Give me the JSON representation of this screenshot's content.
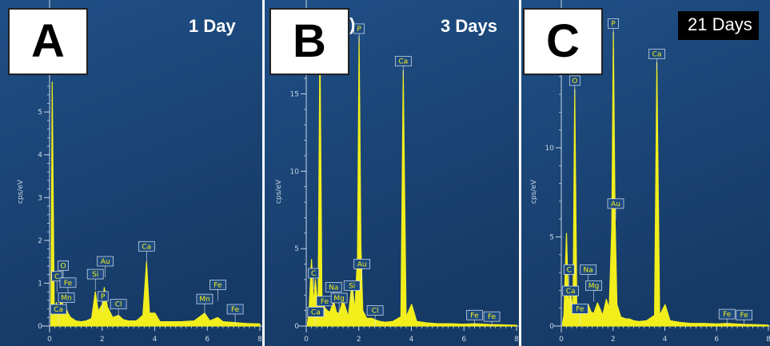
{
  "chart_data": [
    {
      "type": "line",
      "panel_letter": "A",
      "title": "1 Day",
      "ylabel": "cps/eV",
      "xlim": [
        0,
        8
      ],
      "ylim": [
        0,
        5.6
      ],
      "yticks": [
        0,
        1,
        2,
        3,
        4,
        5
      ],
      "xticks": [
        0,
        2,
        4,
        6,
        8
      ],
      "series": [
        {
          "x": [
            0.05,
            0.1,
            0.18,
            0.26,
            0.35,
            0.45,
            0.52,
            0.6,
            0.7,
            0.8,
            1.0,
            1.2,
            1.4,
            1.6,
            1.74,
            1.85,
            2.0,
            2.08,
            2.2,
            2.4,
            2.62,
            2.8,
            3.0,
            3.3,
            3.55,
            3.69,
            3.8,
            4.01,
            4.2,
            4.6,
            5.0,
            5.5,
            5.9,
            6.1,
            6.4,
            6.6,
            7.06,
            7.5,
            8.0
          ],
          "y": [
            0.1,
            5.7,
            0.2,
            0.55,
            0.3,
            0.7,
            0.4,
            0.45,
            0.3,
            0.2,
            0.12,
            0.1,
            0.12,
            0.18,
            0.8,
            0.35,
            0.5,
            0.9,
            0.45,
            0.2,
            0.25,
            0.15,
            0.12,
            0.12,
            0.25,
            1.5,
            0.3,
            0.3,
            0.1,
            0.1,
            0.1,
            0.12,
            0.3,
            0.12,
            0.2,
            0.1,
            0.08,
            0.06,
            0.05
          ]
        }
      ],
      "annotations": [
        {
          "label": "O",
          "x": 0.52,
          "y": 1.3
        },
        {
          "label": "C",
          "x": 0.28,
          "y": 1.05
        },
        {
          "label": "Fe",
          "x": 0.7,
          "y": 0.9
        },
        {
          "label": "Mn",
          "x": 0.64,
          "y": 0.55
        },
        {
          "label": "Ca",
          "x": 0.34,
          "y": 0.28
        },
        {
          "label": "Si",
          "x": 1.74,
          "y": 1.1
        },
        {
          "label": "Au",
          "x": 2.12,
          "y": 1.4
        },
        {
          "label": "P",
          "x": 2.03,
          "y": 0.58
        },
        {
          "label": "Cl",
          "x": 2.62,
          "y": 0.4
        },
        {
          "label": "Ca",
          "x": 3.69,
          "y": 1.75
        },
        {
          "label": "Mn",
          "x": 5.9,
          "y": 0.52
        },
        {
          "label": "Fe",
          "x": 6.4,
          "y": 0.85
        },
        {
          "label": "Fe",
          "x": 7.06,
          "y": 0.28
        }
      ]
    },
    {
      "type": "line",
      "panel_letter": "B",
      "title": "3 Days",
      "title_fragment": ")",
      "ylabel": "cps/eV",
      "xlim": [
        0,
        8
      ],
      "ylim": [
        0,
        19
      ],
      "yticks": [
        0,
        5,
        10,
        15
      ],
      "xticks": [
        0,
        2,
        4,
        6,
        8
      ],
      "series": [
        {
          "x": [
            0.05,
            0.1,
            0.2,
            0.28,
            0.35,
            0.45,
            0.52,
            0.6,
            0.7,
            0.8,
            0.9,
            1.04,
            1.15,
            1.25,
            1.4,
            1.6,
            1.74,
            1.85,
            1.95,
            2.01,
            2.08,
            2.15,
            2.3,
            2.5,
            2.62,
            2.8,
            3.0,
            3.3,
            3.6,
            3.69,
            3.8,
            4.01,
            4.2,
            4.6,
            5.0,
            5.5,
            6.0,
            6.4,
            7.0,
            7.5,
            8.0
          ],
          "y": [
            0.2,
            0.8,
            4.3,
            1.4,
            3.0,
            1.0,
            18.7,
            1.5,
            1.2,
            1.0,
            0.9,
            1.6,
            0.9,
            0.8,
            1.7,
            0.6,
            2.8,
            1.0,
            4.5,
            18.7,
            5.2,
            1.0,
            0.5,
            0.5,
            0.4,
            0.3,
            0.25,
            0.3,
            0.6,
            16.5,
            0.6,
            1.4,
            0.3,
            0.2,
            0.15,
            0.15,
            0.12,
            0.15,
            0.1,
            0.08,
            0.05
          ]
        }
      ],
      "annotations": [
        {
          "label": "C",
          "x": 0.28,
          "y": 3.1
        },
        {
          "label": "Ca",
          "x": 0.36,
          "y": 0.6
        },
        {
          "label": "Fe",
          "x": 0.7,
          "y": 1.3
        },
        {
          "label": "Na",
          "x": 1.04,
          "y": 2.2
        },
        {
          "label": "Mg",
          "x": 1.25,
          "y": 1.5
        },
        {
          "label": "Si",
          "x": 1.74,
          "y": 2.3
        },
        {
          "label": "P",
          "x": 2.01,
          "y": 18.9
        },
        {
          "label": "Au",
          "x": 2.12,
          "y": 3.7
        },
        {
          "label": "Cl",
          "x": 2.62,
          "y": 0.7
        },
        {
          "label": "Ca",
          "x": 3.69,
          "y": 16.8
        },
        {
          "label": "Fe",
          "x": 6.4,
          "y": 0.4
        },
        {
          "label": "Fe",
          "x": 7.06,
          "y": 0.3
        }
      ]
    },
    {
      "type": "line",
      "panel_letter": "C",
      "title": "21 Days",
      "ylabel": "cps/eV",
      "xlim": [
        0,
        8
      ],
      "ylim": [
        0,
        16.5
      ],
      "yticks": [
        0,
        5,
        10,
        15
      ],
      "xticks": [
        0,
        2,
        4,
        6,
        8
      ],
      "series": [
        {
          "x": [
            0.05,
            0.1,
            0.2,
            0.28,
            0.35,
            0.45,
            0.52,
            0.6,
            0.7,
            0.8,
            0.9,
            1.04,
            1.15,
            1.25,
            1.4,
            1.6,
            1.74,
            1.85,
            1.95,
            2.01,
            2.08,
            2.15,
            2.3,
            2.5,
            2.62,
            2.8,
            3.0,
            3.3,
            3.6,
            3.69,
            3.8,
            4.01,
            4.2,
            4.6,
            5.0,
            5.5,
            6.0,
            6.4,
            7.0,
            7.5,
            8.0
          ],
          "y": [
            0.2,
            0.6,
            5.2,
            1.0,
            2.2,
            0.8,
            13.3,
            1.0,
            0.8,
            0.7,
            0.7,
            1.2,
            0.8,
            0.7,
            1.3,
            0.6,
            1.5,
            1.0,
            5.5,
            16.5,
            6.0,
            1.2,
            0.5,
            0.4,
            0.4,
            0.3,
            0.25,
            0.3,
            0.6,
            14.8,
            0.6,
            1.2,
            0.3,
            0.2,
            0.15,
            0.15,
            0.12,
            0.15,
            0.1,
            0.08,
            0.05
          ]
        }
      ],
      "annotations": [
        {
          "label": "O",
          "x": 0.52,
          "y": 13.5
        },
        {
          "label": "C",
          "x": 0.3,
          "y": 2.9
        },
        {
          "label": "Ca",
          "x": 0.36,
          "y": 1.7
        },
        {
          "label": "Fe",
          "x": 0.72,
          "y": 0.7
        },
        {
          "label": "Na",
          "x": 1.04,
          "y": 2.9
        },
        {
          "label": "Mg",
          "x": 1.25,
          "y": 2.0
        },
        {
          "label": "P",
          "x": 2.01,
          "y": 16.7
        },
        {
          "label": "Au",
          "x": 2.1,
          "y": 6.6
        },
        {
          "label": "Ca",
          "x": 3.69,
          "y": 15.0
        },
        {
          "label": "Fe",
          "x": 6.4,
          "y": 0.4
        },
        {
          "label": "Fe",
          "x": 7.06,
          "y": 0.35
        }
      ]
    }
  ]
}
